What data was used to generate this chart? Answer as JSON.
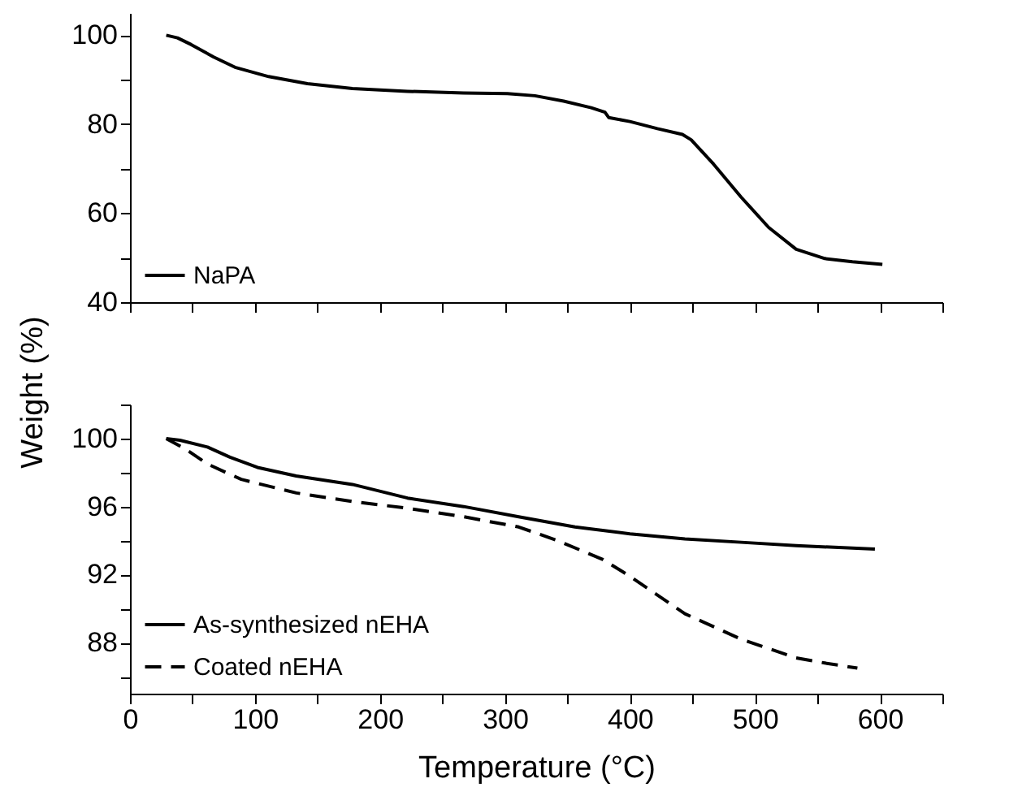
{
  "chart_data": [
    {
      "type": "line",
      "xlim": [
        0,
        650
      ],
      "xticks": [
        0,
        {
          "value": 50,
          "label": null
        },
        100,
        {
          "value": 150,
          "label": null
        },
        200,
        {
          "value": 250,
          "label": null
        },
        300,
        {
          "value": 350,
          "label": null
        },
        400,
        {
          "value": 450,
          "label": null
        },
        500,
        {
          "value": 550,
          "label": null
        },
        600,
        {
          "value": 650,
          "label": null
        }
      ],
      "ylim": [
        40,
        105
      ],
      "yticks": [
        40,
        {
          "value": 50,
          "label": null
        },
        60,
        {
          "value": 70,
          "label": null
        },
        80,
        {
          "value": 90,
          "label": null
        },
        100
      ],
      "tick_labels": "y",
      "grid": false,
      "legend": "bottom left",
      "marker": "none",
      "series": [
        {
          "name": "NaPA",
          "color": "#000000",
          "line_style": "solid",
          "x": [
            29,
            38,
            49,
            67,
            84,
            111,
            142,
            178,
            222,
            267,
            302,
            324,
            347,
            369,
            380,
            383,
            400,
            422,
            442,
            449,
            467,
            489,
            511,
            533,
            556,
            578,
            602
          ],
          "values": [
            100,
            99.4,
            97.9,
            95.1,
            92.8,
            90.7,
            89.1,
            88.0,
            87.4,
            87.0,
            86.9,
            86.4,
            85.2,
            83.7,
            82.7,
            81.5,
            80.6,
            79.0,
            77.7,
            76.5,
            71.0,
            63.6,
            56.8,
            51.9,
            49.8,
            49.1,
            48.5
          ]
        }
      ]
    },
    {
      "type": "line",
      "xlabel": "Temperature (°C)",
      "ylabel": "Weight (%)",
      "xlim": [
        0,
        650
      ],
      "xticks": [
        0,
        {
          "value": 50,
          "label": null
        },
        100,
        {
          "value": 150,
          "label": null
        },
        200,
        {
          "value": 250,
          "label": null
        },
        300,
        {
          "value": 350,
          "label": null
        },
        400,
        {
          "value": 450,
          "label": null
        },
        500,
        {
          "value": 550,
          "label": null
        },
        600,
        {
          "value": 650,
          "label": null
        }
      ],
      "ylim": [
        85,
        102
      ],
      "yticks": [
        {
          "value": 86,
          "label": null
        },
        88,
        {
          "value": 90,
          "label": null
        },
        92,
        {
          "value": 94,
          "label": null
        },
        96,
        {
          "value": 98,
          "label": null
        },
        100,
        {
          "value": 102,
          "label": null
        }
      ],
      "grid": false,
      "legend": "bottom left",
      "marker": "none",
      "series": [
        {
          "name": "As-synthesized nEHA",
          "color": "#000000",
          "line_style": "solid",
          "x": [
            29,
            40,
            62,
            80,
            102,
            133,
            178,
            222,
            267,
            311,
            356,
            400,
            444,
            489,
            533,
            596
          ],
          "values": [
            100,
            99.9,
            99.5,
            98.9,
            98.3,
            97.8,
            97.3,
            96.5,
            96.0,
            95.4,
            94.8,
            94.4,
            94.1,
            93.9,
            93.7,
            93.5
          ]
        },
        {
          "name": "Coated nEHA",
          "color": "#000000",
          "line_style": "dashed",
          "x": [
            29,
            44,
            62,
            89,
            133,
            178,
            222,
            267,
            311,
            342,
            378,
            400,
            422,
            444,
            489,
            533,
            556,
            582
          ],
          "values": [
            100,
            99.4,
            98.5,
            97.6,
            96.8,
            96.3,
            95.9,
            95.4,
            94.8,
            94.0,
            92.9,
            91.9,
            90.8,
            89.7,
            88.2,
            87.1,
            86.8,
            86.5
          ]
        }
      ]
    }
  ]
}
